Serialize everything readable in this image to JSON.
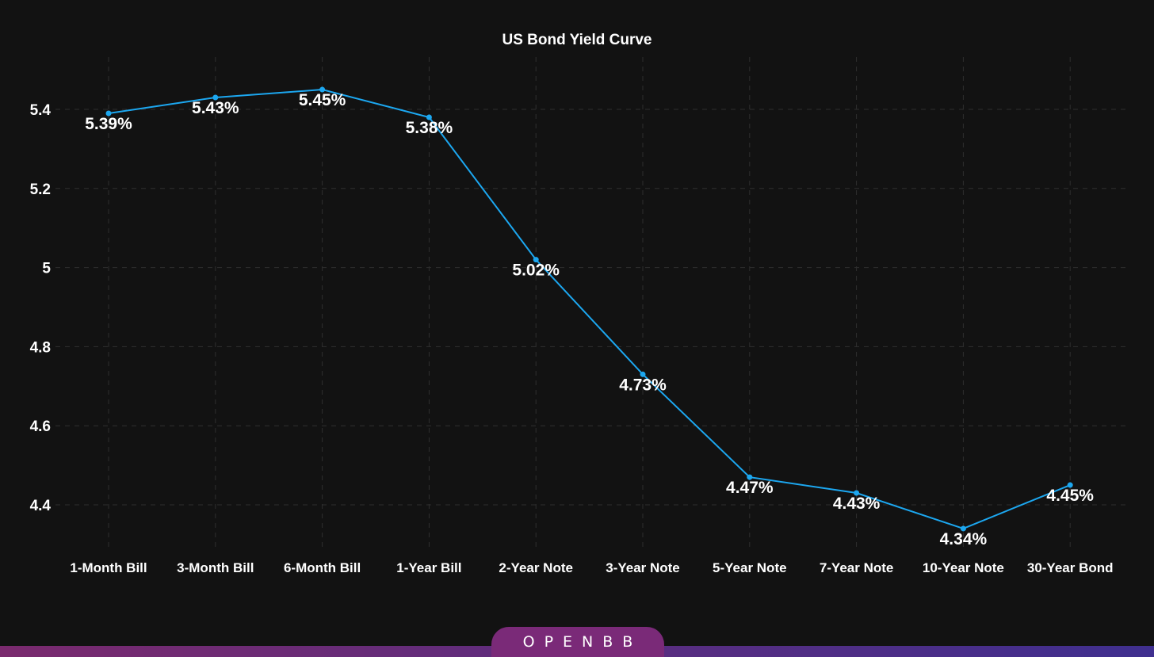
{
  "colors": {
    "background": "#121212",
    "series_line": "#1ca7f0",
    "gridline": "#2f2f2f",
    "text": "#ffffff",
    "bar_left": "#7a2a6e",
    "bar_right": "#3f2f8f",
    "tab_fill": "#7a2a78"
  },
  "brand": {
    "name": "OPENBB"
  },
  "chart_data": {
    "type": "line",
    "title": "US Bond Yield Curve",
    "xlabel": "",
    "ylabel": "",
    "categories": [
      "1-Month Bill",
      "3-Month Bill",
      "6-Month Bill",
      "1-Year Bill",
      "2-Year Note",
      "3-Year Note",
      "5-Year Note",
      "7-Year Note",
      "10-Year Note",
      "30-Year Bond"
    ],
    "series": [
      {
        "values": [
          5.39,
          5.43,
          5.45,
          5.38,
          5.02,
          4.73,
          4.47,
          4.43,
          4.34,
          4.45
        ],
        "labels": [
          "5.39%",
          "5.43%",
          "5.45%",
          "5.38%",
          "5.02%",
          "4.73%",
          "4.47%",
          "4.43%",
          "4.34%",
          "4.45%"
        ]
      }
    ],
    "yticks": [
      4.4,
      4.6,
      4.8,
      5,
      5.2,
      5.4
    ],
    "ytick_labels": [
      "4.4",
      "4.6",
      "4.8",
      "5",
      "5.2",
      "5.4"
    ],
    "ylim": [
      4.27,
      5.53
    ],
    "grid": true,
    "legend": "none"
  }
}
